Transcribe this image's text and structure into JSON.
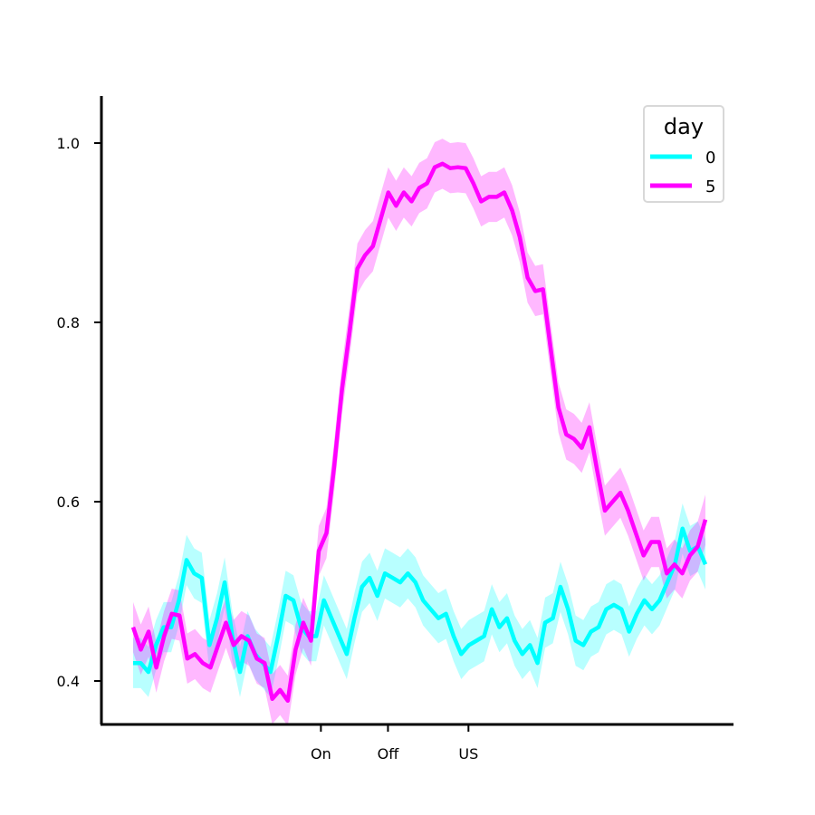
{
  "chart_data": {
    "type": "line",
    "title": "",
    "xlabel": "",
    "ylabel": "",
    "x_range": [
      0,
      64
    ],
    "ylim": [
      0.352,
      1.052
    ],
    "y_ticks": [
      0.4,
      0.6,
      0.8,
      1.0
    ],
    "y_tick_labels": [
      "0.4",
      "0.6",
      "0.8",
      "1.0"
    ],
    "x_ticks": [
      {
        "x": 21,
        "label": "On"
      },
      {
        "x": 28.5,
        "label": "Off"
      },
      {
        "x": 37.5,
        "label": "US"
      }
    ],
    "grid": false,
    "legend": {
      "title": "day",
      "position": "top-right",
      "entries": [
        "0",
        "5"
      ]
    },
    "series": [
      {
        "name": "0",
        "color": "#00FFFF",
        "band_half_width": 0.028,
        "values": [
          0.42,
          0.42,
          0.41,
          0.44,
          0.46,
          0.46,
          0.49,
          0.535,
          0.52,
          0.515,
          0.44,
          0.47,
          0.51,
          0.45,
          0.41,
          0.45,
          0.43,
          0.42,
          0.41,
          0.45,
          0.495,
          0.49,
          0.46,
          0.45,
          0.45,
          0.49,
          0.47,
          0.45,
          0.43,
          0.47,
          0.505,
          0.515,
          0.495,
          0.52,
          0.515,
          0.51,
          0.52,
          0.51,
          0.49,
          0.48,
          0.47,
          0.475,
          0.45,
          0.43,
          0.44,
          0.445,
          0.45,
          0.48,
          0.46,
          0.47,
          0.445,
          0.43,
          0.44,
          0.42,
          0.465,
          0.47,
          0.505,
          0.48,
          0.445,
          0.44,
          0.455,
          0.46,
          0.48,
          0.485,
          0.48,
          0.455,
          0.475,
          0.49,
          0.48,
          0.49,
          0.51,
          0.53,
          0.57,
          0.545,
          0.55,
          0.53
        ]
      },
      {
        "name": "5",
        "color": "#FF00FF",
        "band_half_width": 0.028,
        "values": [
          0.46,
          0.435,
          0.455,
          0.415,
          0.45,
          0.475,
          0.473,
          0.425,
          0.43,
          0.42,
          0.415,
          0.44,
          0.465,
          0.44,
          0.45,
          0.445,
          0.425,
          0.42,
          0.38,
          0.39,
          0.378,
          0.435,
          0.465,
          0.445,
          0.545,
          0.565,
          0.64,
          0.725,
          0.79,
          0.86,
          0.875,
          0.885,
          0.915,
          0.945,
          0.93,
          0.945,
          0.935,
          0.95,
          0.955,
          0.973,
          0.977,
          0.972,
          0.973,
          0.972,
          0.955,
          0.935,
          0.94,
          0.94,
          0.945,
          0.925,
          0.895,
          0.85,
          0.835,
          0.837,
          0.77,
          0.705,
          0.675,
          0.67,
          0.66,
          0.683,
          0.635,
          0.59,
          0.6,
          0.61,
          0.59,
          0.565,
          0.54,
          0.555,
          0.555,
          0.52,
          0.53,
          0.52,
          0.54,
          0.55,
          0.58
        ]
      }
    ]
  }
}
